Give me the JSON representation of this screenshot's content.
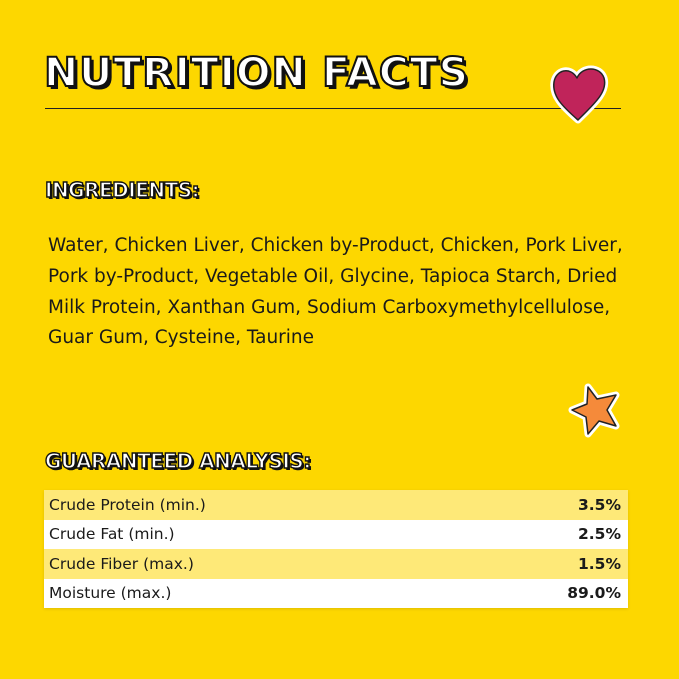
{
  "title": "NUTRITION FACTS",
  "ingredients": {
    "heading": "INGREDIENTS:",
    "text": "Water, Chicken Liver, Chicken by-Product, Chicken, Pork Liver, Pork by-Product, Vegetable Oil, Glycine, Tapioca Starch, Dried Milk Protein, Xanthan Gum, Sodium Carboxymethylcellulose, Guar Gum, Cysteine, Taurine"
  },
  "analysis": {
    "heading": "GUARANTEED ANALYSIS:",
    "rows": [
      {
        "label": "Crude Protein (min.)",
        "value": "3.5%"
      },
      {
        "label": "Crude Fat (min.)",
        "value": "2.5%"
      },
      {
        "label": "Crude Fiber (max.)",
        "value": "1.5%"
      },
      {
        "label": "Moisture (max.)",
        "value": "89.0%"
      }
    ]
  },
  "decorations": {
    "heart_color": "#C0245A",
    "star_color": "#F58A3A",
    "background": "#FDD700"
  }
}
